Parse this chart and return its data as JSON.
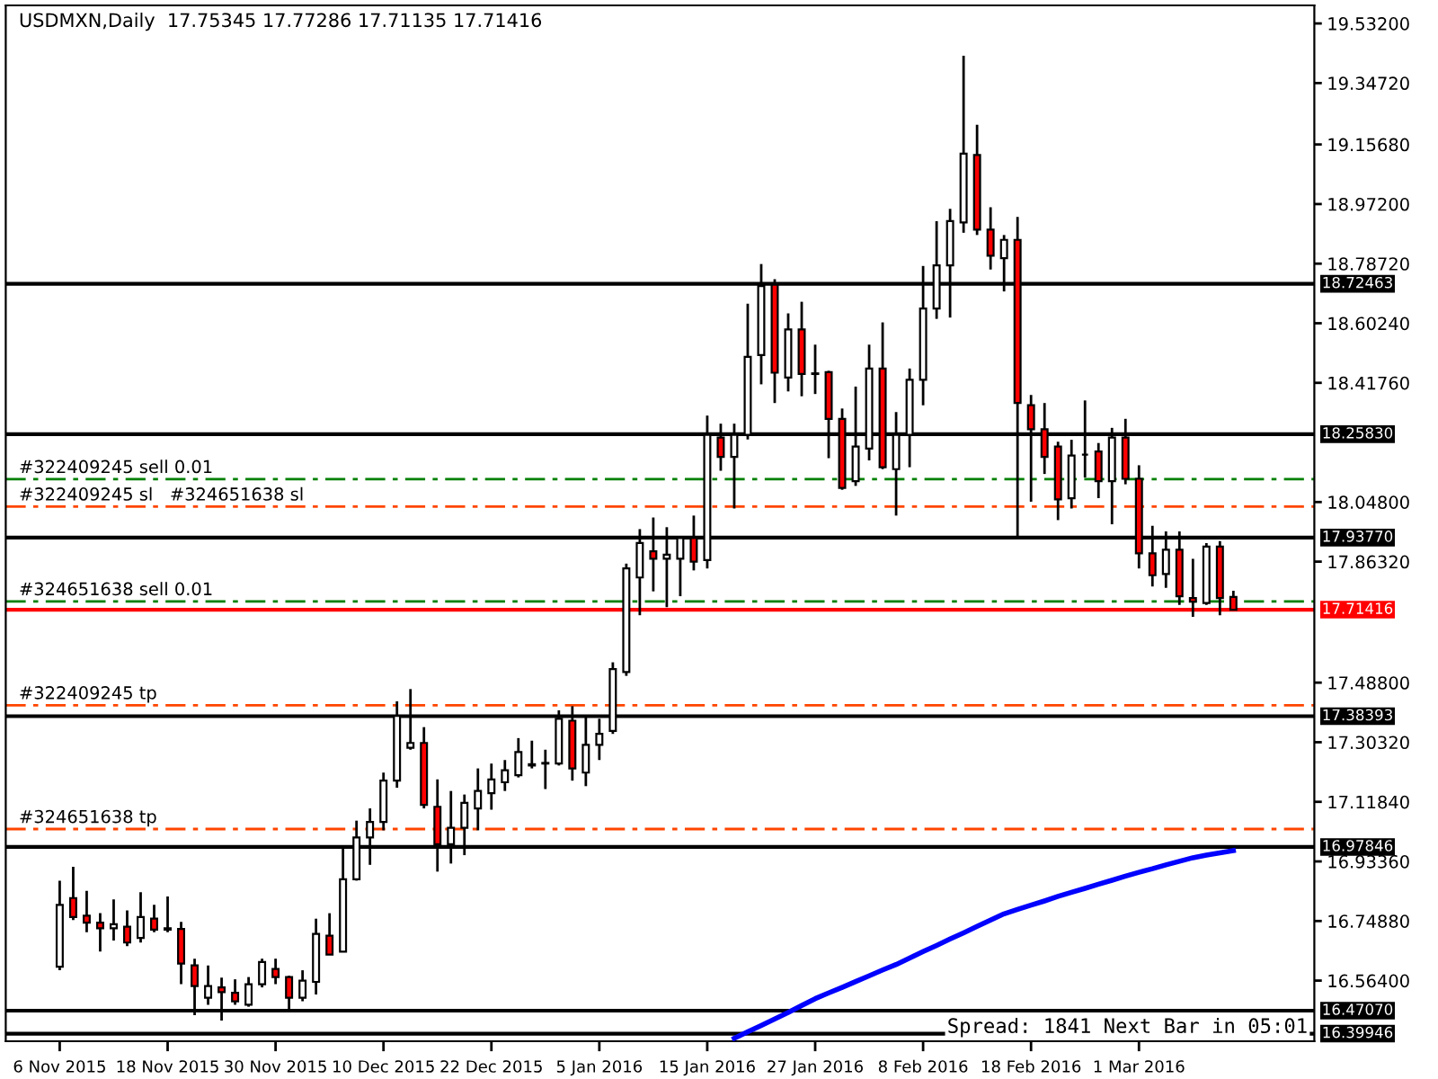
{
  "chart_data": {
    "type": "candlestick",
    "title": "USDMXN,Daily  17.75345 17.77286 17.71135 17.71416",
    "categories": [
      "6 Nov 2015",
      null,
      null,
      null,
      null,
      null,
      null,
      null,
      "18 Nov 2015",
      null,
      null,
      null,
      null,
      null,
      null,
      null,
      "30 Nov 2015",
      null,
      null,
      null,
      null,
      null,
      null,
      null,
      "10 Dec 2015",
      null,
      null,
      null,
      null,
      null,
      null,
      null,
      "22 Dec 2015",
      null,
      null,
      null,
      null,
      null,
      null,
      null,
      "5 Jan 2016",
      null,
      null,
      null,
      null,
      null,
      null,
      null,
      "15 Jan 2016",
      null,
      null,
      null,
      null,
      null,
      null,
      null,
      "27 Jan 2016",
      null,
      null,
      null,
      null,
      null,
      null,
      null,
      "8 Feb 2016",
      null,
      null,
      null,
      null,
      null,
      null,
      null,
      "18 Feb 2016",
      null,
      null,
      null,
      null,
      null,
      null,
      null,
      "1 Mar 2016",
      null,
      null,
      null,
      null,
      null,
      null,
      null
    ],
    "ohlc": [
      [
        16.607,
        16.874,
        16.596,
        16.799
      ],
      [
        16.82,
        16.917,
        16.752,
        16.761
      ],
      [
        16.765,
        16.842,
        16.714,
        16.744
      ],
      [
        16.744,
        16.773,
        16.654,
        16.726
      ],
      [
        16.726,
        16.816,
        16.688,
        16.739
      ],
      [
        16.731,
        16.782,
        16.671,
        16.682
      ],
      [
        16.696,
        16.838,
        16.682,
        16.761
      ],
      [
        16.756,
        16.799,
        16.714,
        16.722
      ],
      [
        16.722,
        16.825,
        16.714,
        16.726
      ],
      [
        16.724,
        16.746,
        16.553,
        16.617
      ],
      [
        16.611,
        16.632,
        16.457,
        16.547
      ],
      [
        16.511,
        16.611,
        16.489,
        16.547
      ],
      [
        16.543,
        16.573,
        16.44,
        16.528
      ],
      [
        16.526,
        16.568,
        16.489,
        16.5
      ],
      [
        16.489,
        16.575,
        16.483,
        16.553
      ],
      [
        16.553,
        16.632,
        16.543,
        16.622
      ],
      [
        16.6,
        16.632,
        16.553,
        16.575
      ],
      [
        16.575,
        16.579,
        16.468,
        16.511
      ],
      [
        16.511,
        16.596,
        16.5,
        16.564
      ],
      [
        16.56,
        16.756,
        16.521,
        16.709
      ],
      [
        16.703,
        16.773,
        16.645,
        16.645
      ],
      [
        16.654,
        16.974,
        16.654,
        16.878
      ],
      [
        16.878,
        17.06,
        16.874,
        17.008
      ],
      [
        17.008,
        17.098,
        16.923,
        17.056
      ],
      [
        17.056,
        17.209,
        17.03,
        17.184
      ],
      [
        17.184,
        17.43,
        17.162,
        17.385
      ],
      [
        17.286,
        17.468,
        17.28,
        17.301
      ],
      [
        17.301,
        17.35,
        17.098,
        17.109
      ],
      [
        17.103,
        17.188,
        16.902,
        16.987
      ],
      [
        16.987,
        17.152,
        16.927,
        17.038
      ],
      [
        17.038,
        17.141,
        16.953,
        17.115
      ],
      [
        17.098,
        17.222,
        17.03,
        17.152
      ],
      [
        17.145,
        17.237,
        17.094,
        17.188
      ],
      [
        17.179,
        17.248,
        17.152,
        17.216
      ],
      [
        17.201,
        17.316,
        17.194,
        17.273
      ],
      [
        17.231,
        17.308,
        17.222,
        17.235
      ],
      [
        17.237,
        17.28,
        17.158,
        17.239
      ],
      [
        17.237,
        17.402,
        17.231,
        17.376
      ],
      [
        17.37,
        17.415,
        17.184,
        17.222
      ],
      [
        17.209,
        17.387,
        17.167,
        17.295
      ],
      [
        17.295,
        17.376,
        17.248,
        17.329
      ],
      [
        17.338,
        17.551,
        17.329,
        17.53
      ],
      [
        17.521,
        17.857,
        17.509,
        17.842
      ],
      [
        17.814,
        17.964,
        17.697,
        17.921
      ],
      [
        17.895,
        18.0,
        17.771,
        17.872
      ],
      [
        17.872,
        17.97,
        17.722,
        17.885
      ],
      [
        17.872,
        17.942,
        17.756,
        17.936
      ],
      [
        17.936,
        18.006,
        17.836,
        17.863
      ],
      [
        17.868,
        18.316,
        17.842,
        18.256
      ],
      [
        18.248,
        18.291,
        18.145,
        18.188
      ],
      [
        18.188,
        18.291,
        18.028,
        18.256
      ],
      [
        18.256,
        18.663,
        18.242,
        18.498
      ],
      [
        18.504,
        18.786,
        18.413,
        18.718
      ],
      [
        18.722,
        18.739,
        18.355,
        18.449
      ],
      [
        18.434,
        18.633,
        18.391,
        18.583
      ],
      [
        18.583,
        18.669,
        18.376,
        18.445
      ],
      [
        18.445,
        18.536,
        18.383,
        18.447
      ],
      [
        18.451,
        18.455,
        18.184,
        18.306
      ],
      [
        18.306,
        18.338,
        18.086,
        18.092
      ],
      [
        18.113,
        18.406,
        18.098,
        18.22
      ],
      [
        18.214,
        18.536,
        18.177,
        18.462
      ],
      [
        18.462,
        18.605,
        18.15,
        18.156
      ],
      [
        18.15,
        18.327,
        18.006,
        18.256
      ],
      [
        18.256,
        18.462,
        18.156,
        18.427
      ],
      [
        18.427,
        18.78,
        18.348,
        18.648
      ],
      [
        18.648,
        18.919,
        18.616,
        18.782
      ],
      [
        18.782,
        18.957,
        18.62,
        18.919
      ],
      [
        18.915,
        19.432,
        18.883,
        19.128
      ],
      [
        19.124,
        19.218,
        18.876,
        18.893
      ],
      [
        18.893,
        18.962,
        18.769,
        18.812
      ],
      [
        18.804,
        18.876,
        18.701,
        18.861
      ],
      [
        18.861,
        18.932,
        17.942,
        18.355
      ],
      [
        18.348,
        18.38,
        18.049,
        18.274
      ],
      [
        18.274,
        18.355,
        18.135,
        18.188
      ],
      [
        18.22,
        18.235,
        17.992,
        18.056
      ],
      [
        18.06,
        18.241,
        18.028,
        18.192
      ],
      [
        18.195,
        18.363,
        18.124,
        18.195
      ],
      [
        18.205,
        18.231,
        18.06,
        18.113
      ],
      [
        18.113,
        18.278,
        17.979,
        18.248
      ],
      [
        18.248,
        18.306,
        18.103,
        18.12
      ],
      [
        18.12,
        18.162,
        17.842,
        17.889
      ],
      [
        17.889,
        17.974,
        17.786,
        17.821
      ],
      [
        17.825,
        17.957,
        17.782,
        17.9
      ],
      [
        17.9,
        17.957,
        17.729,
        17.756
      ],
      [
        17.75,
        17.872,
        17.692,
        17.739
      ],
      [
        17.735,
        17.921,
        17.729,
        17.91
      ],
      [
        17.91,
        17.927,
        17.697,
        17.75
      ],
      [
        17.75345,
        17.77286,
        17.71135,
        17.71416
      ]
    ],
    "series": [
      {
        "type": "line",
        "color": "#0000ff",
        "values": [
          null,
          null,
          null,
          null,
          null,
          null,
          null,
          null,
          null,
          null,
          null,
          null,
          null,
          null,
          null,
          null,
          null,
          null,
          null,
          null,
          null,
          null,
          null,
          null,
          null,
          null,
          null,
          null,
          null,
          null,
          null,
          null,
          null,
          null,
          null,
          null,
          null,
          null,
          null,
          null,
          null,
          null,
          null,
          null,
          null,
          null,
          null,
          null,
          null,
          null,
          16.385,
          16.405,
          16.425,
          16.445,
          16.465,
          16.487,
          16.508,
          16.526,
          16.543,
          16.561,
          16.579,
          16.597,
          16.614,
          16.634,
          16.654,
          16.673,
          16.693,
          16.712,
          16.732,
          16.752,
          16.771,
          16.785,
          16.798,
          16.811,
          16.825,
          16.838,
          16.85,
          16.863,
          16.875,
          16.888,
          16.9,
          16.911,
          16.923,
          16.934,
          16.945,
          16.953,
          16.96,
          16.967
        ]
      }
    ],
    "ylim": [
      16.376,
      19.588
    ],
    "yticks": [
      {
        "value": 19.532,
        "label": "19.53200"
      },
      {
        "value": 19.3472,
        "label": "19.34720"
      },
      {
        "value": 19.1568,
        "label": "19.15680"
      },
      {
        "value": 18.972,
        "label": "18.97200"
      },
      {
        "value": 18.7872,
        "label": "18.78720"
      },
      {
        "value": 18.6024,
        "label": "18.60240"
      },
      {
        "value": 18.4176,
        "label": "18.41760"
      },
      {
        "value": 18.048,
        "label": "18.04800"
      },
      {
        "value": 17.8632,
        "label": "17.86320"
      },
      {
        "value": 17.488,
        "label": "17.48800"
      },
      {
        "value": 17.3032,
        "label": "17.30320"
      },
      {
        "value": 17.1184,
        "label": "17.11840"
      },
      {
        "value": 16.9336,
        "label": "16.93360"
      },
      {
        "value": 16.7488,
        "label": "16.74880"
      },
      {
        "value": 16.564,
        "label": "16.56400"
      }
    ],
    "ref_lines": [
      {
        "axis": "y",
        "value": 18.72463,
        "label": "18.72463",
        "color": "#000000",
        "line_style": "solid"
      },
      {
        "axis": "y",
        "value": 18.2583,
        "label": "18.25830",
        "color": "#000000",
        "line_style": "solid"
      },
      {
        "axis": "y",
        "value": 17.9377,
        "label": "17.93770",
        "color": "#000000",
        "line_style": "solid"
      },
      {
        "axis": "y",
        "value": 17.71416,
        "label": "17.71416",
        "color": "#ff0000",
        "line_style": "solid"
      },
      {
        "axis": "y",
        "value": 17.38393,
        "label": "17.38393",
        "color": "#000000",
        "line_style": "solid"
      },
      {
        "axis": "y",
        "value": 16.97846,
        "label": "16.97846",
        "color": "#000000",
        "line_style": "solid"
      },
      {
        "axis": "y",
        "value": 16.4707,
        "label": "16.47070",
        "color": "#000000",
        "line_style": "solid"
      },
      {
        "axis": "y",
        "value": 16.39946,
        "label": "16.39946",
        "color": "#000000",
        "line_style": "solid"
      },
      {
        "axis": "y",
        "value": 18.119,
        "label": "#322409245 sell 0.01",
        "color": "#008000",
        "line_style": "dashed"
      },
      {
        "axis": "y",
        "value": 18.034,
        "label": "#322409245 sl   #324651638 sl",
        "color": "#ff4500",
        "line_style": "dashed"
      },
      {
        "axis": "y",
        "value": 17.74,
        "label": "#324651638 sell 0.01",
        "color": "#008000",
        "line_style": "dashed"
      },
      {
        "axis": "y",
        "value": 17.418,
        "label": "#322409245 tp",
        "color": "#ff4500",
        "line_style": "dashed"
      },
      {
        "axis": "y",
        "value": 17.034,
        "label": "#324651638 tp",
        "color": "#ff4500",
        "line_style": "dashed"
      }
    ],
    "annotations": [
      "Spread: 1841 Next Bar in 05:01"
    ]
  }
}
